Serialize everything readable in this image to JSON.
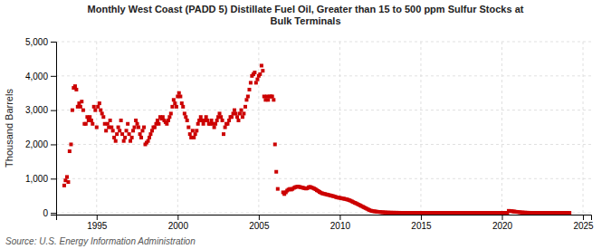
{
  "chart_data": {
    "type": "scatter",
    "title": "Monthly West Coast (PADD 5) Distillate Fuel Oil, Greater than 15 to 500 ppm Sulfur Stocks at\nBulk Terminals",
    "y_label": "Thousand Barrels",
    "annotations": [
      "Source: U.S. Energy Information Administration"
    ],
    "color": "#cc0000",
    "marker": "square",
    "grid": true,
    "xlim": [
      1992.5,
      2025.5
    ],
    "ylim": [
      -50,
      5000
    ],
    "xticks": [
      1995,
      2000,
      2005,
      2010,
      2015,
      2020,
      2025
    ],
    "yticks": [
      0,
      {
        "value": 1000,
        "label": "1,000"
      },
      {
        "value": 2000,
        "label": "2,000"
      },
      {
        "value": 3000,
        "label": "3,000"
      },
      {
        "value": 4000,
        "label": "4,000"
      },
      {
        "value": 5000,
        "label": "5,000"
      }
    ],
    "x": [
      1993.0,
      1993.08,
      1993.17,
      1993.25,
      1993.33,
      1993.42,
      1993.5,
      1993.58,
      1993.67,
      1993.75,
      1993.83,
      1993.92,
      1994.0,
      1994.08,
      1994.17,
      1994.25,
      1994.33,
      1994.42,
      1994.5,
      1994.58,
      1994.67,
      1994.75,
      1994.83,
      1994.92,
      1995.0,
      1995.08,
      1995.17,
      1995.25,
      1995.33,
      1995.42,
      1995.5,
      1995.58,
      1995.67,
      1995.75,
      1995.83,
      1995.92,
      1996.0,
      1996.08,
      1996.17,
      1996.25,
      1996.33,
      1996.42,
      1996.5,
      1996.58,
      1996.67,
      1996.75,
      1996.83,
      1996.92,
      1997.0,
      1997.08,
      1997.17,
      1997.25,
      1997.33,
      1997.42,
      1997.5,
      1997.58,
      1997.67,
      1997.75,
      1997.83,
      1997.92,
      1998.0,
      1998.08,
      1998.17,
      1998.25,
      1998.33,
      1998.42,
      1998.5,
      1998.58,
      1998.67,
      1998.75,
      1998.83,
      1998.92,
      1999.0,
      1999.08,
      1999.17,
      1999.25,
      1999.33,
      1999.42,
      1999.5,
      1999.58,
      1999.67,
      1999.75,
      1999.83,
      1999.92,
      2000.0,
      2000.08,
      2000.17,
      2000.25,
      2000.33,
      2000.42,
      2000.5,
      2000.58,
      2000.67,
      2000.75,
      2000.83,
      2000.92,
      2001.0,
      2001.08,
      2001.17,
      2001.25,
      2001.33,
      2001.42,
      2001.5,
      2001.58,
      2001.67,
      2001.75,
      2001.83,
      2001.92,
      2002.0,
      2002.08,
      2002.17,
      2002.25,
      2002.33,
      2002.42,
      2002.5,
      2002.58,
      2002.67,
      2002.75,
      2002.83,
      2002.92,
      2003.0,
      2003.08,
      2003.17,
      2003.25,
      2003.33,
      2003.42,
      2003.5,
      2003.58,
      2003.67,
      2003.75,
      2003.83,
      2003.92,
      2004.0,
      2004.08,
      2004.17,
      2004.25,
      2004.33,
      2004.42,
      2004.5,
      2004.58,
      2004.67,
      2004.75,
      2004.83,
      2004.92,
      2005.0,
      2005.08,
      2005.17,
      2005.25,
      2005.33,
      2005.42,
      2005.5,
      2005.58,
      2005.67,
      2005.75,
      2005.83,
      2005.92,
      2006.0,
      2006.08,
      2006.17,
      2006.5,
      2006.58,
      2006.67,
      2006.75,
      2006.83,
      2006.92,
      2007.0,
      2007.08,
      2007.17,
      2007.25,
      2007.33,
      2007.42,
      2007.5,
      2007.58,
      2007.67,
      2007.75,
      2007.83,
      2007.92,
      2008.0,
      2008.08,
      2008.17,
      2008.25,
      2008.33,
      2008.42,
      2008.5,
      2008.58,
      2008.67,
      2008.75,
      2008.83,
      2008.92,
      2009.0,
      2009.08,
      2009.17,
      2009.25,
      2009.33,
      2009.42,
      2009.5,
      2009.58,
      2009.67,
      2009.75,
      2009.83,
      2009.92,
      2010.0,
      2010.08,
      2010.17,
      2010.25,
      2010.33,
      2010.42,
      2010.5,
      2010.58,
      2010.67,
      2010.75,
      2010.83,
      2010.92,
      2011.0,
      2011.08,
      2011.17,
      2011.25,
      2011.33,
      2011.42,
      2011.5,
      2011.58,
      2011.67,
      2011.75,
      2011.83,
      2011.92,
      2012.0,
      2012.08,
      2012.17,
      2012.25,
      2012.33,
      2012.42,
      2012.5,
      2012.58,
      2012.67,
      2012.75,
      2012.83,
      2012.92,
      2013.0,
      2013.08,
      2013.17,
      2013.25,
      2013.33,
      2013.42,
      2013.5,
      2013.58,
      2013.67,
      2013.75,
      2013.83,
      2013.92,
      2014.0,
      2014.08,
      2014.17,
      2014.25,
      2014.33,
      2014.42,
      2014.5,
      2014.58,
      2014.67,
      2014.75,
      2014.83,
      2014.92,
      2015.0,
      2015.08,
      2015.17,
      2015.25,
      2015.33,
      2015.42,
      2015.5,
      2015.58,
      2015.67,
      2015.75,
      2015.83,
      2015.92,
      2016.0,
      2016.08,
      2016.17,
      2016.25,
      2016.33,
      2016.42,
      2016.5,
      2016.58,
      2016.67,
      2016.75,
      2016.83,
      2016.92,
      2017.0,
      2017.08,
      2017.17,
      2017.25,
      2017.33,
      2017.42,
      2017.5,
      2017.58,
      2017.67,
      2017.75,
      2017.83,
      2017.92,
      2018.0,
      2018.08,
      2018.17,
      2018.25,
      2018.33,
      2018.42,
      2018.5,
      2018.58,
      2018.67,
      2018.75,
      2018.83,
      2018.92,
      2019.0,
      2019.08,
      2019.17,
      2019.25,
      2019.33,
      2019.42,
      2019.5,
      2019.58,
      2019.67,
      2019.75,
      2019.83,
      2019.92,
      2020.0,
      2020.08,
      2020.17,
      2020.25,
      2020.33,
      2020.42,
      2020.5,
      2020.58,
      2020.67,
      2020.75,
      2020.83,
      2020.92,
      2021.0,
      2021.08,
      2021.17,
      2021.25,
      2021.33,
      2021.42,
      2021.5,
      2021.58,
      2021.67,
      2021.75,
      2021.83,
      2021.92,
      2022.0,
      2022.08,
      2022.17,
      2022.25,
      2022.33,
      2022.42,
      2022.5,
      2022.58,
      2022.67,
      2022.75,
      2022.83,
      2022.92,
      2023.0,
      2023.08,
      2023.17,
      2023.25,
      2023.33,
      2023.42,
      2023.5,
      2023.58,
      2023.67,
      2023.75,
      2023.83,
      2023.92,
      2024.0,
      2024.08,
      2024.17
    ],
    "values": [
      800,
      950,
      1050,
      900,
      1800,
      2000,
      3000,
      3650,
      3700,
      3600,
      3100,
      3200,
      3100,
      3250,
      3000,
      2600,
      2600,
      2800,
      2700,
      2800,
      2700,
      2600,
      3100,
      3000,
      2500,
      3100,
      3200,
      3000,
      2900,
      2800,
      2600,
      2400,
      2600,
      2500,
      2700,
      2500,
      2400,
      2200,
      2100,
      2300,
      2500,
      2400,
      2700,
      2300,
      2100,
      2200,
      2400,
      2600,
      2300,
      2100,
      2200,
      2400,
      2500,
      2700,
      2600,
      2500,
      2300,
      2200,
      2400,
      2500,
      2000,
      2050,
      2100,
      2200,
      2300,
      2400,
      2500,
      2500,
      2600,
      2700,
      2600,
      2800,
      2750,
      2800,
      2700,
      2650,
      2600,
      2700,
      2800,
      2900,
      3100,
      3300,
      3200,
      3100,
      3400,
      3500,
      3400,
      3200,
      3100,
      2900,
      2800,
      2700,
      2500,
      2300,
      2200,
      2400,
      2200,
      2300,
      2400,
      2600,
      2700,
      2800,
      2700,
      2600,
      2700,
      2800,
      2700,
      2600,
      2600,
      2700,
      2600,
      2500,
      2600,
      2700,
      2800,
      2900,
      2800,
      2700,
      2300,
      2500,
      2600,
      2600,
      2700,
      2800,
      2800,
      2900,
      3000,
      2900,
      2800,
      2700,
      2900,
      3000,
      2800,
      2900,
      3100,
      3300,
      3400,
      3600,
      3800,
      4000,
      4050,
      4100,
      3800,
      3900,
      4000,
      4050,
      4300,
      4150,
      3400,
      3300,
      3400,
      3300,
      3400,
      3400,
      3400,
      3300,
      2000,
      1200,
      700,
      600,
      550,
      600,
      650,
      680,
      700,
      680,
      700,
      730,
      750,
      760,
      770,
      760,
      750,
      740,
      730,
      720,
      710,
      720,
      750,
      760,
      740,
      730,
      710,
      690,
      660,
      640,
      610,
      590,
      570,
      560,
      550,
      540,
      530,
      520,
      510,
      500,
      490,
      480,
      465,
      450,
      445,
      440,
      430,
      420,
      415,
      405,
      395,
      385,
      370,
      355,
      335,
      315,
      295,
      280,
      260,
      240,
      220,
      200,
      180,
      160,
      140,
      120,
      100,
      80,
      65,
      55,
      48,
      42,
      37,
      32,
      28,
      24,
      20,
      17,
      14,
      12,
      10,
      9,
      8,
      7,
      6,
      6,
      5,
      5,
      4,
      4,
      3,
      3,
      3,
      3,
      3,
      2,
      2,
      2,
      2,
      2,
      2,
      2,
      1,
      1,
      1,
      1,
      1,
      1,
      1,
      1,
      1,
      1,
      1,
      1,
      1,
      1,
      1,
      1,
      1,
      1,
      1,
      1,
      1,
      1,
      1,
      1,
      1,
      1,
      1,
      1,
      1,
      1,
      1,
      1,
      1,
      1,
      1,
      1,
      1,
      1,
      1,
      1,
      1,
      1,
      1,
      1,
      1,
      1,
      1,
      1,
      1,
      1,
      1,
      1,
      1,
      1,
      1,
      1,
      1,
      1,
      1,
      1,
      1,
      1,
      1,
      1,
      1,
      1,
      1,
      1,
      60,
      55,
      50,
      45,
      40,
      35,
      30,
      25,
      20,
      15,
      12,
      10,
      8,
      6,
      5,
      4,
      3,
      3,
      2,
      2,
      2,
      2,
      1,
      1,
      1,
      1,
      1,
      1,
      1,
      1,
      1,
      1,
      1,
      1,
      1,
      1,
      1,
      1,
      1,
      1,
      1,
      1,
      1,
      1,
      1,
      1
    ]
  }
}
